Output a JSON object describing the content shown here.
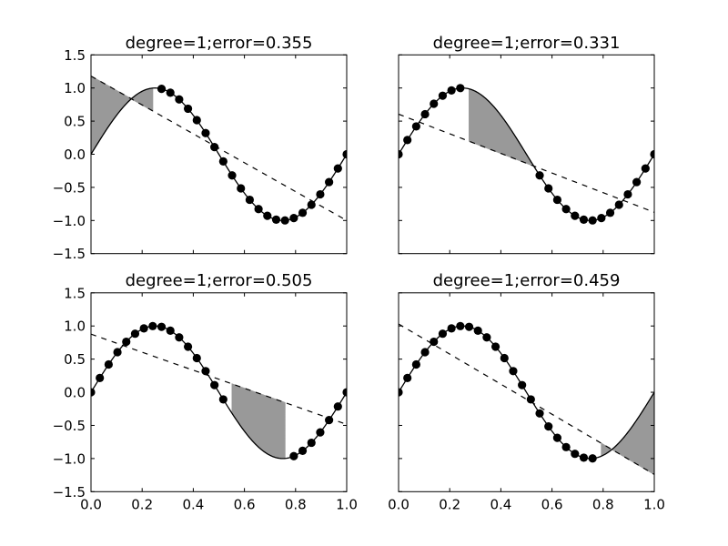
{
  "chart_data": [
    {
      "type": "line",
      "title": "degree=1;error=0.355",
      "error": 0.355,
      "fit_line": {
        "y_at_x0": 1.18,
        "y_at_x1": -1.0
      },
      "held_out_indices": [
        0,
        7
      ],
      "xlim": [
        0,
        1
      ],
      "ylim": [
        -1.5,
        1.5
      ],
      "show_xticklabels": false,
      "show_yticklabels": true
    },
    {
      "type": "line",
      "title": "degree=1;error=0.331",
      "error": 0.331,
      "fit_line": {
        "y_at_x0": 0.605,
        "y_at_x1": -0.876
      },
      "held_out_indices": [
        8,
        15
      ],
      "xlim": [
        0,
        1
      ],
      "ylim": [
        -1.5,
        1.5
      ],
      "show_xticklabels": false,
      "show_yticklabels": false
    },
    {
      "type": "line",
      "title": "degree=1;error=0.505",
      "error": 0.505,
      "fit_line": {
        "y_at_x0": 0.877,
        "y_at_x1": -0.485
      },
      "held_out_indices": [
        16,
        22
      ],
      "xlim": [
        0,
        1
      ],
      "ylim": [
        -1.5,
        1.5
      ],
      "show_xticklabels": true,
      "show_yticklabels": true
    },
    {
      "type": "line",
      "title": "degree=1;error=0.459",
      "error": 0.459,
      "fit_line": {
        "y_at_x0": 1.03,
        "y_at_x1": -1.24
      },
      "held_out_indices": [
        23,
        29
      ],
      "xlim": [
        0,
        1
      ],
      "ylim": [
        -1.5,
        1.5
      ],
      "show_xticklabels": true,
      "show_yticklabels": false
    }
  ],
  "samples": {
    "count": 30,
    "function": "sin(2*pi*x)"
  },
  "xticks": {
    "values": [
      0,
      0.2,
      0.4,
      0.6,
      0.8,
      1.0
    ],
    "labels": [
      "0.0",
      "0.2",
      "0.4",
      "0.6",
      "0.8",
      "1.0"
    ]
  },
  "yticks": {
    "values": [
      1.5,
      1.0,
      0.5,
      0.0,
      -0.5,
      -1.0,
      -1.5
    ],
    "labels": [
      "1.5",
      "1.0",
      "0.5",
      "0.0",
      "−0.5",
      "−1.0",
      "−1.5"
    ]
  },
  "colors": {
    "fill": "#999999",
    "line": "#000000",
    "markers": "#000000"
  }
}
